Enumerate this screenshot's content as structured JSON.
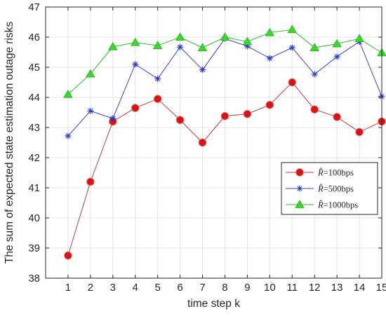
{
  "chart_data": {
    "type": "line",
    "title": "",
    "xlabel": "time step k",
    "ylabel": "The sum of expected state estimation outage risks",
    "x": [
      1,
      2,
      3,
      4,
      5,
      6,
      7,
      8,
      9,
      10,
      11,
      12,
      13,
      14,
      15
    ],
    "xlim": [
      0,
      15
    ],
    "ylim": [
      38,
      47
    ],
    "xticks": [
      "1",
      "2",
      "3",
      "4",
      "5",
      "6",
      "7",
      "8",
      "9",
      "10",
      "11",
      "12",
      "13",
      "14",
      "15"
    ],
    "yticks": [
      "38",
      "39",
      "40",
      "41",
      "42",
      "43",
      "44",
      "45",
      "46",
      "47"
    ],
    "grid": true,
    "legend_position": "right",
    "series": [
      {
        "name": "R̂=100bps",
        "legend_symbol": "R̂",
        "legend_value": "=100bps",
        "color": "#b5413e",
        "marker": "circle",
        "marker_color": "#e01010",
        "values": [
          38.75,
          41.2,
          43.2,
          43.65,
          43.95,
          43.25,
          42.5,
          43.38,
          43.45,
          43.75,
          44.5,
          43.6,
          43.35,
          42.85,
          43.2
        ]
      },
      {
        "name": "R̂=500bps",
        "legend_symbol": "R̂",
        "legend_value": "=500bps",
        "color": "#3c44c8",
        "marker": "asterisk",
        "marker_color": "#2233cc",
        "values": [
          42.72,
          43.55,
          43.3,
          45.1,
          44.62,
          45.67,
          44.92,
          45.95,
          45.7,
          45.3,
          45.65,
          44.77,
          45.35,
          45.85,
          44.03
        ]
      },
      {
        "name": "R̂=1000bps",
        "legend_symbol": "R̂",
        "legend_value": "=1000bps",
        "color": "#2db82d",
        "marker": "triangle",
        "marker_color": "#33dd22",
        "values": [
          44.1,
          44.78,
          45.68,
          45.82,
          45.72,
          46.0,
          45.65,
          46.0,
          45.85,
          46.15,
          46.25,
          45.65,
          45.78,
          45.95,
          45.48
        ]
      }
    ]
  }
}
